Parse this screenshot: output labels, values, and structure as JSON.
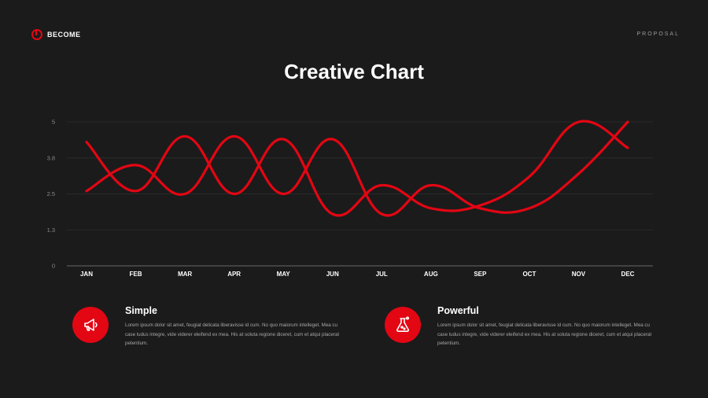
{
  "brand": {
    "name": "BECOME",
    "accent": "#e30613"
  },
  "header": {
    "label": "PROPOSAL"
  },
  "page_title": "Creative Chart",
  "chart_data": {
    "type": "line",
    "categories": [
      "JAN",
      "FEB",
      "MAR",
      "APR",
      "MAY",
      "JUN",
      "JUL",
      "AUG",
      "SEP",
      "OCT",
      "NOV",
      "DEC"
    ],
    "series": [
      {
        "values": [
          4.3,
          2.6,
          4.5,
          2.5,
          4.4,
          1.8,
          2.8,
          2.0,
          2.1,
          3.1,
          5.0,
          4.1
        ]
      },
      {
        "values": [
          2.6,
          3.5,
          2.5,
          4.5,
          2.5,
          4.4,
          1.8,
          2.8,
          2.0,
          2.0,
          3.2,
          5.0
        ]
      }
    ],
    "y_ticks": [
      "0",
      "1.3",
      "2.5",
      "3.8",
      "5"
    ],
    "ylim": [
      0,
      5
    ],
    "line_color": "#e30613",
    "grid": true
  },
  "features": [
    {
      "icon": "megaphone-icon",
      "title": "Simple",
      "text": "Lorem ipsum dolor sit amet, feugiat delicata liberavisse id cum. No quo maiorum intelleget. Mea cu case ludus integre, vide viderer eleifend ex mea. His at soluta regione diceret, cum et atqui placerat petentium."
    },
    {
      "icon": "flask-icon",
      "title": "Powerful",
      "text": "Lorem ipsum dolor sit amet, feugiat delicata liberavisse id cum. No quo maiorum intelleget. Mea cu case ludus integre, vide viderer eleifend ex mea. His at soluta regione diceret, cum et atqui placerat petentium."
    }
  ]
}
